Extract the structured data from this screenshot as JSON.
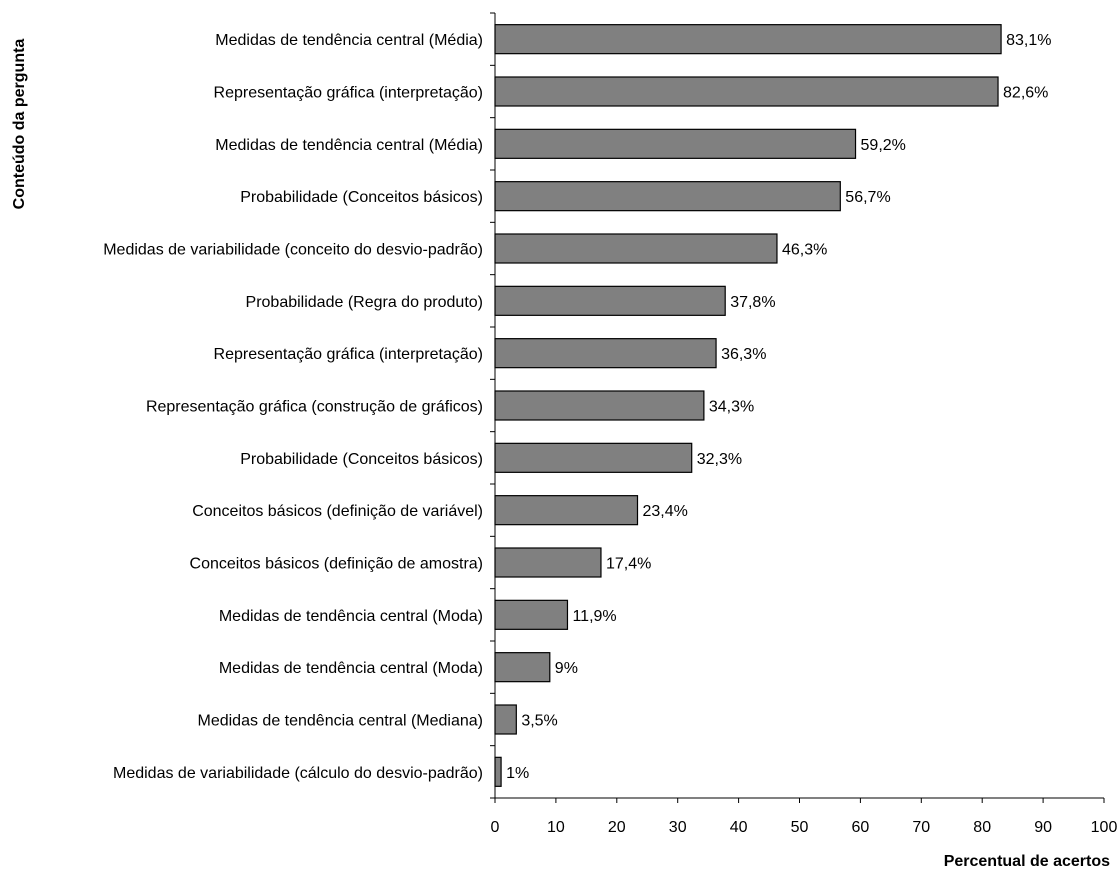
{
  "chart_data": {
    "type": "bar",
    "orientation": "horizontal",
    "categories": [
      "Medidas de tendência central (Média)",
      "Representação gráfica (interpretação)",
      "Medidas de tendência central (Média)",
      "Probabilidade (Conceitos básicos)",
      "Medidas de variabilidade (conceito do desvio-padrão)",
      "Probabilidade (Regra do produto)",
      "Representação gráfica (interpretação)",
      "Representação gráfica (construção de gráficos)",
      "Probabilidade (Conceitos básicos)",
      "Conceitos básicos (definição de variável)",
      "Conceitos básicos (definição de amostra)",
      "Medidas de tendência central (Moda)",
      "Medidas de tendência central (Moda)",
      "Medidas de tendência central (Mediana)",
      "Medidas de variabilidade (cálculo do desvio-padrão)"
    ],
    "values": [
      83.1,
      82.6,
      59.2,
      56.7,
      46.3,
      37.8,
      36.3,
      34.3,
      32.3,
      23.4,
      17.4,
      11.9,
      9,
      3.5,
      1
    ],
    "value_labels": [
      "83,1%",
      "82,6%",
      "59,2%",
      "56,7%",
      "46,3%",
      "37,8%",
      "36,3%",
      "34,3%",
      "32,3%",
      "23,4%",
      "17,4%",
      "11,9%",
      "9%",
      "3,5%",
      "1%"
    ],
    "xticks": [
      "0",
      "10",
      "20",
      "30",
      "40",
      "50",
      "60",
      "70",
      "80",
      "90",
      "100"
    ],
    "xlim": [
      0,
      100
    ],
    "xlabel": "Percentual de acertos",
    "ylabel": "Conteúdo da pergunta",
    "title": "",
    "grid": false,
    "legend": "none",
    "colors": {
      "bar_fill": "#808080",
      "bar_stroke": "#000000"
    }
  }
}
